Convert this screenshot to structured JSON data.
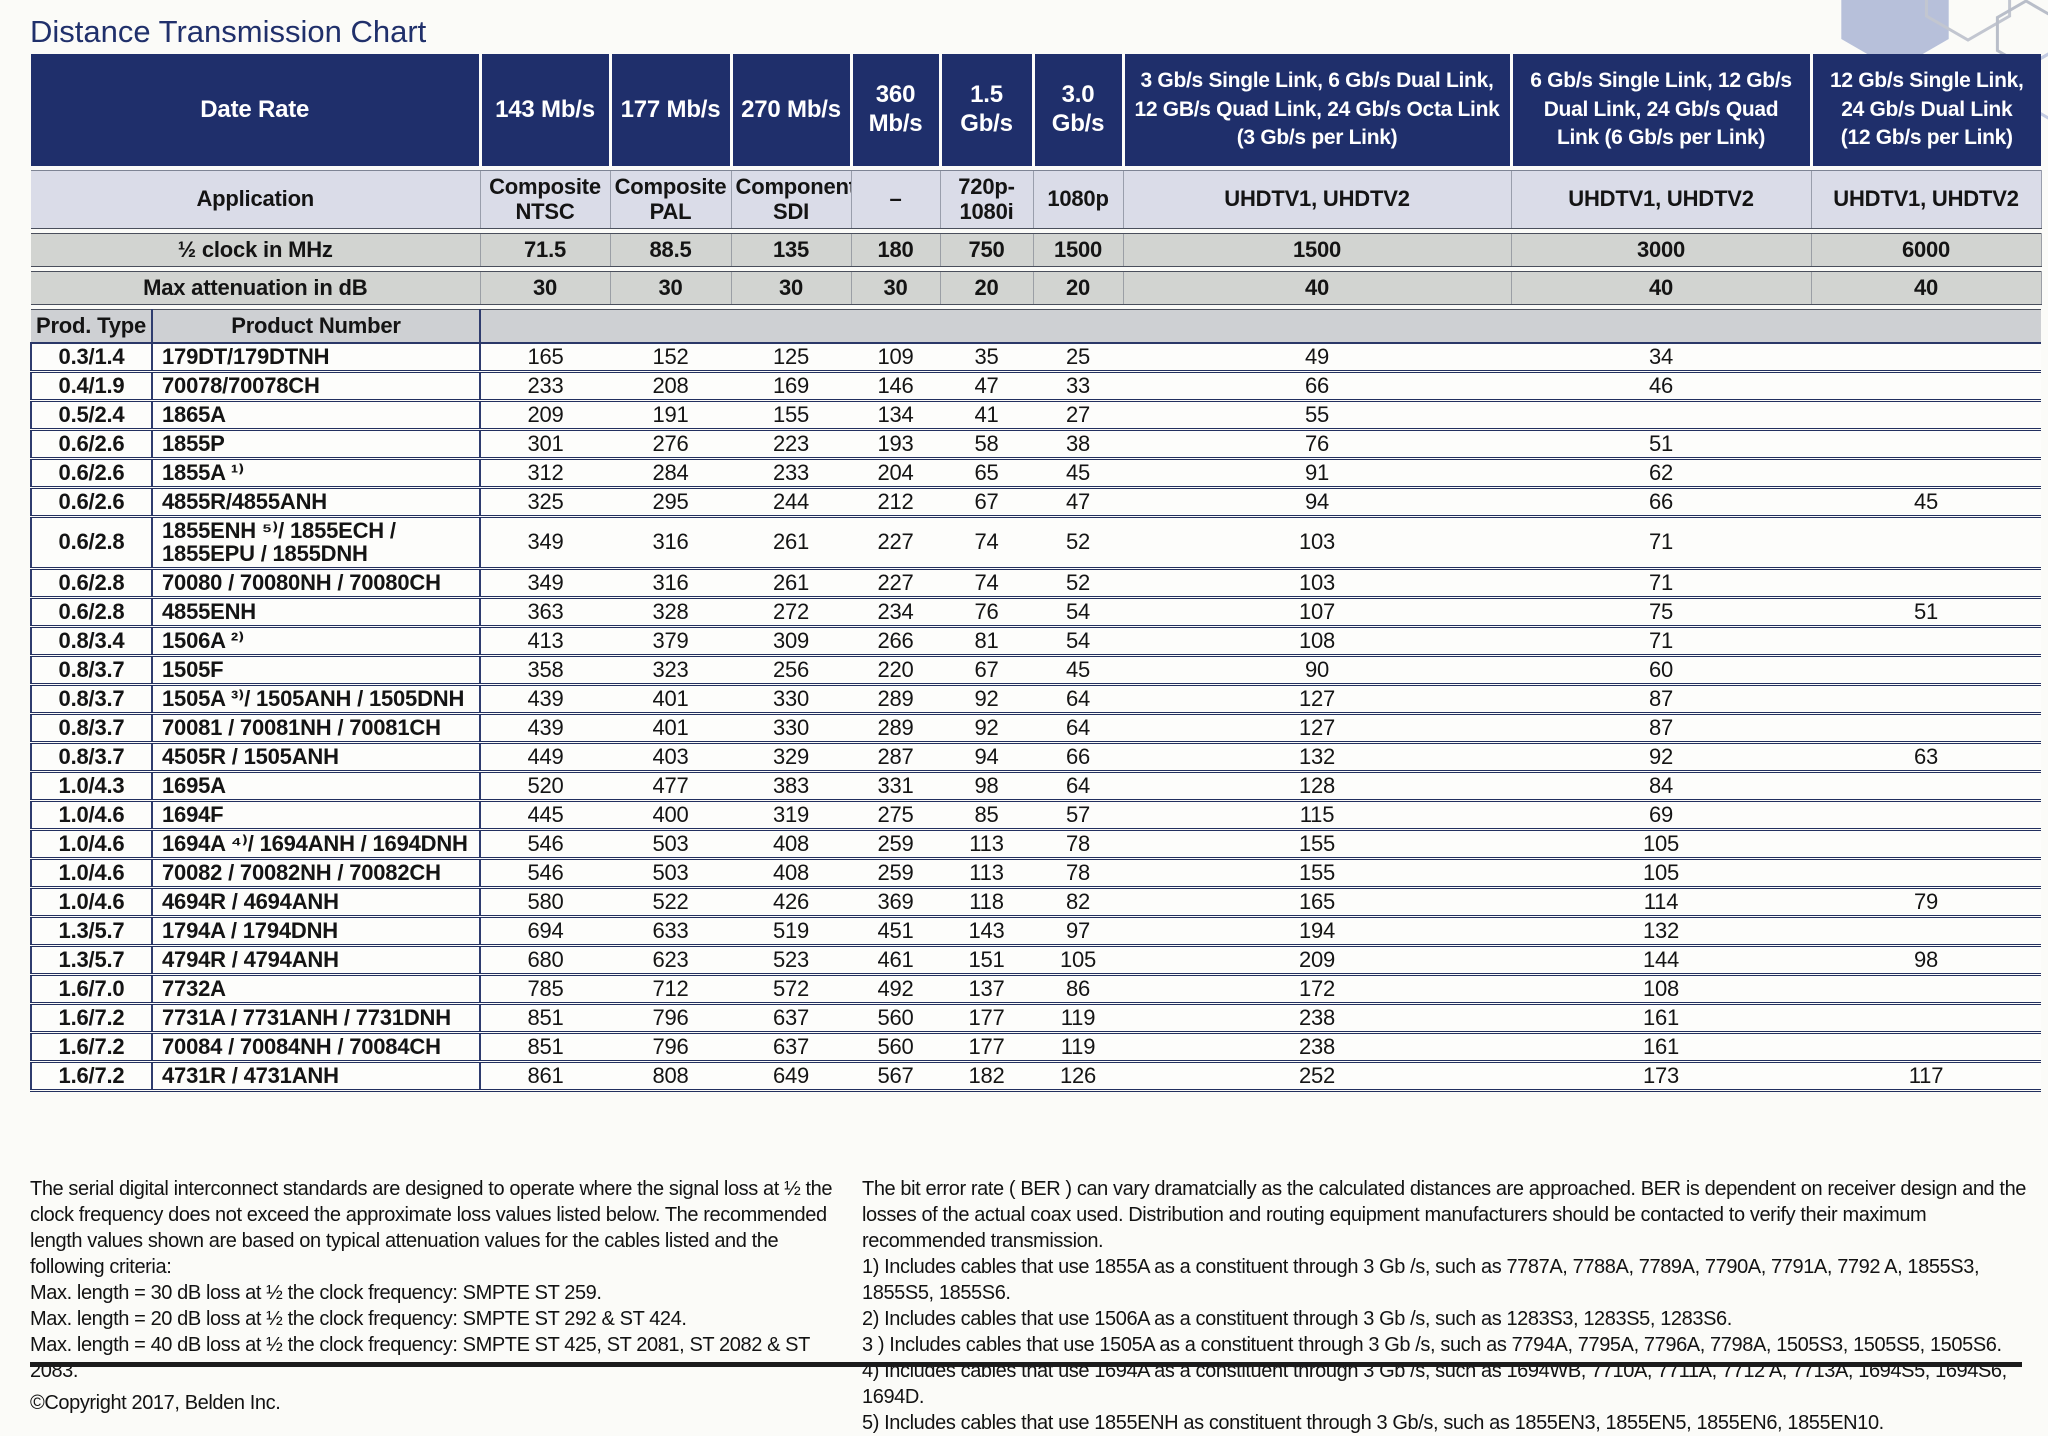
{
  "page": {
    "title": "Distance Transmission Chart"
  },
  "colors": {
    "header_navy": "#1f2f6b",
    "application_band": "#dadce8",
    "gray_band": "#d2d4d1",
    "row_rule_navy": "#23305f",
    "title_navy": "#20306b",
    "hex_fill": "#b7c0da",
    "hex_outline_gray": "#c2c6d0",
    "hex_outline_blue": "#c3cbe2"
  },
  "table": {
    "header": {
      "date_rate_label": "Date Rate",
      "rates": [
        "143 Mb/s",
        "177 Mb/s",
        "270 Mb/s",
        "360\nMb/s",
        "1.5\nGb/s",
        "3.0\nGb/s",
        "3 Gb/s Single Link, 6 Gb/s Dual Link,\n12 GB/s Quad Link, 24 Gb/s Octa Link\n(3 Gb/s per Link)",
        "6 Gb/s Single Link, 12 Gb/s\nDual Link, 24 Gb/s Quad\nLink (6 Gb/s per Link)",
        "12 Gb/s Single Link,\n24 Gb/s Dual Link\n(12 Gb/s per Link)"
      ],
      "application_label": "Application",
      "applications": [
        "Composite\nNTSC",
        "Composite\nPAL",
        "Component\nSDI",
        "–",
        "720p-\n1080i",
        "1080p",
        "UHDTV1, UHDTV2",
        "UHDTV1, UHDTV2",
        "UHDTV1, UHDTV2"
      ],
      "half_clock_label": "½ clock in MHz",
      "half_clock": [
        "71.5",
        "88.5",
        "135",
        "180",
        "750",
        "1500",
        "1500",
        "3000",
        "6000"
      ],
      "max_attenuation_label": "Max attenuation in dB",
      "max_attenuation": [
        "30",
        "30",
        "30",
        "30",
        "20",
        "20",
        "40",
        "40",
        "40"
      ],
      "prod_type_label": "Prod. Type",
      "product_number_label": "Product Number"
    },
    "rows": [
      {
        "type": "0.3/1.4",
        "product": "179DT/179DTNH",
        "values": [
          "165",
          "152",
          "125",
          "109",
          "35",
          "25",
          "49",
          "34",
          ""
        ]
      },
      {
        "type": "0.4/1.9",
        "product": "70078/70078CH",
        "values": [
          "233",
          "208",
          "169",
          "146",
          "47",
          "33",
          "66",
          "46",
          ""
        ]
      },
      {
        "type": "0.5/2.4",
        "product": "1865A",
        "values": [
          "209",
          "191",
          "155",
          "134",
          "41",
          "27",
          "55",
          "",
          ""
        ]
      },
      {
        "type": "0.6/2.6",
        "product": "1855P",
        "values": [
          "301",
          "276",
          "223",
          "193",
          "58",
          "38",
          "76",
          "51",
          ""
        ]
      },
      {
        "type": "0.6/2.6",
        "product": "1855A ¹⁾",
        "values": [
          "312",
          "284",
          "233",
          "204",
          "65",
          "45",
          "91",
          "62",
          ""
        ]
      },
      {
        "type": "0.6/2.6",
        "product": "4855R/4855ANH",
        "values": [
          "325",
          "295",
          "244",
          "212",
          "67",
          "47",
          "94",
          "66",
          "45"
        ]
      },
      {
        "type": "0.6/2.8",
        "product": "1855ENH ⁵⁾/ 1855ECH /\n1855EPU / 1855DNH",
        "values": [
          "349",
          "316",
          "261",
          "227",
          "74",
          "52",
          "103",
          "71",
          ""
        ]
      },
      {
        "type": "0.6/2.8",
        "product": "70080 / 70080NH / 70080CH",
        "values": [
          "349",
          "316",
          "261",
          "227",
          "74",
          "52",
          "103",
          "71",
          ""
        ]
      },
      {
        "type": "0.6/2.8",
        "product": "4855ENH",
        "values": [
          "363",
          "328",
          "272",
          "234",
          "76",
          "54",
          "107",
          "75",
          "51"
        ]
      },
      {
        "type": "0.8/3.4",
        "product": "1506A ²⁾",
        "values": [
          "413",
          "379",
          "309",
          "266",
          "81",
          "54",
          "108",
          "71",
          ""
        ]
      },
      {
        "type": "0.8/3.7",
        "product": "1505F",
        "values": [
          "358",
          "323",
          "256",
          "220",
          "67",
          "45",
          "90",
          "60",
          ""
        ]
      },
      {
        "type": "0.8/3.7",
        "product": "1505A ³⁾/ 1505ANH / 1505DNH",
        "values": [
          "439",
          "401",
          "330",
          "289",
          "92",
          "64",
          "127",
          "87",
          ""
        ]
      },
      {
        "type": "0.8/3.7",
        "product": "70081 / 70081NH / 70081CH",
        "values": [
          "439",
          "401",
          "330",
          "289",
          "92",
          "64",
          "127",
          "87",
          ""
        ]
      },
      {
        "type": "0.8/3.7",
        "product": "4505R / 1505ANH",
        "values": [
          "449",
          "403",
          "329",
          "287",
          "94",
          "66",
          "132",
          "92",
          "63"
        ]
      },
      {
        "type": "1.0/4.3",
        "product": "1695A",
        "values": [
          "520",
          "477",
          "383",
          "331",
          "98",
          "64",
          "128",
          "84",
          ""
        ]
      },
      {
        "type": "1.0/4.6",
        "product": "1694F",
        "values": [
          "445",
          "400",
          "319",
          "275",
          "85",
          "57",
          "115",
          "69",
          ""
        ]
      },
      {
        "type": "1.0/4.6",
        "product": "1694A ⁴⁾/ 1694ANH / 1694DNH",
        "values": [
          "546",
          "503",
          "408",
          "259",
          "113",
          "78",
          "155",
          "105",
          ""
        ]
      },
      {
        "type": "1.0/4.6",
        "product": "70082 / 70082NH / 70082CH",
        "values": [
          "546",
          "503",
          "408",
          "259",
          "113",
          "78",
          "155",
          "105",
          ""
        ]
      },
      {
        "type": "1.0/4.6",
        "product": "4694R / 4694ANH",
        "values": [
          "580",
          "522",
          "426",
          "369",
          "118",
          "82",
          "165",
          "114",
          "79"
        ]
      },
      {
        "type": "1.3/5.7",
        "product": "1794A / 1794DNH",
        "values": [
          "694",
          "633",
          "519",
          "451",
          "143",
          "97",
          "194",
          "132",
          ""
        ]
      },
      {
        "type": "1.3/5.7",
        "product": "4794R / 4794ANH",
        "values": [
          "680",
          "623",
          "523",
          "461",
          "151",
          "105",
          "209",
          "144",
          "98"
        ]
      },
      {
        "type": "1.6/7.0",
        "product": "7732A",
        "values": [
          "785",
          "712",
          "572",
          "492",
          "137",
          "86",
          "172",
          "108",
          ""
        ]
      },
      {
        "type": "1.6/7.2",
        "product": "7731A / 7731ANH / 7731DNH",
        "values": [
          "851",
          "796",
          "637",
          "560",
          "177",
          "119",
          "238",
          "161",
          ""
        ]
      },
      {
        "type": "1.6/7.2",
        "product": "70084 / 70084NH / 70084CH",
        "values": [
          "851",
          "796",
          "637",
          "560",
          "177",
          "119",
          "238",
          "161",
          ""
        ]
      },
      {
        "type": "1.6/7.2",
        "product": "4731R / 4731ANH",
        "values": [
          "861",
          "808",
          "649",
          "567",
          "182",
          "126",
          "252",
          "173",
          "117"
        ]
      }
    ]
  },
  "notes_left": {
    "body": "The serial digital interconnect standards are designed to operate where the signal loss at ½ the clock frequency does not exceed the approximate loss values listed below. The recommended length values shown are based on typical attenuation values for the cables listed and the following criteria:",
    "criteria": [
      "Max. length = 30 dB loss at ½ the clock frequency: SMPTE ST 259.",
      "Max. length = 20 dB loss at ½ the clock frequency: SMPTE ST 292 & ST 424.",
      "Max. length = 40 dB loss at ½ the clock frequency: SMPTE ST 425, ST 2081, ST 2082 & ST 2083."
    ],
    "copyright": "©Copyright 2017, Belden Inc."
  },
  "notes_right": {
    "body": "The bit error rate ( BER ) can vary dramatcially as the calculated distances are approached. BER is dependent on receiver design and the losses of the actual coax used. Distribution and routing equipment manufacturers should be contacted to verify their maximum recommended transmission.",
    "footnotes": [
      "1) Includes cables that use 1855A as a constituent through 3 Gb /s, such as 7787A, 7788A, 7789A, 7790A, 7791A, 7792 A, 1855S3, 1855S5, 1855S6.",
      "2) Includes cables that use 1506A as a constituent through 3 Gb /s, such as 1283S3, 1283S5, 1283S6.",
      "3 ) Includes cables that use 1505A as a constituent through 3 Gb /s, such as 7794A, 7795A, 7796A, 7798A, 1505S3, 1505S5, 1505S6.",
      "4) Includes cables that use 1694A as a constituent through 3 Gb /s, such as 1694WB, 7710A, 7711A, 7712 A, 7713A, 1694S5, 1694S6, 1694D.",
      "5) Includes cables that use 1855ENH as constituent through 3 Gb/s, such as 1855EN3, 1855EN5, 1855EN6, 1855EN10."
    ]
  }
}
